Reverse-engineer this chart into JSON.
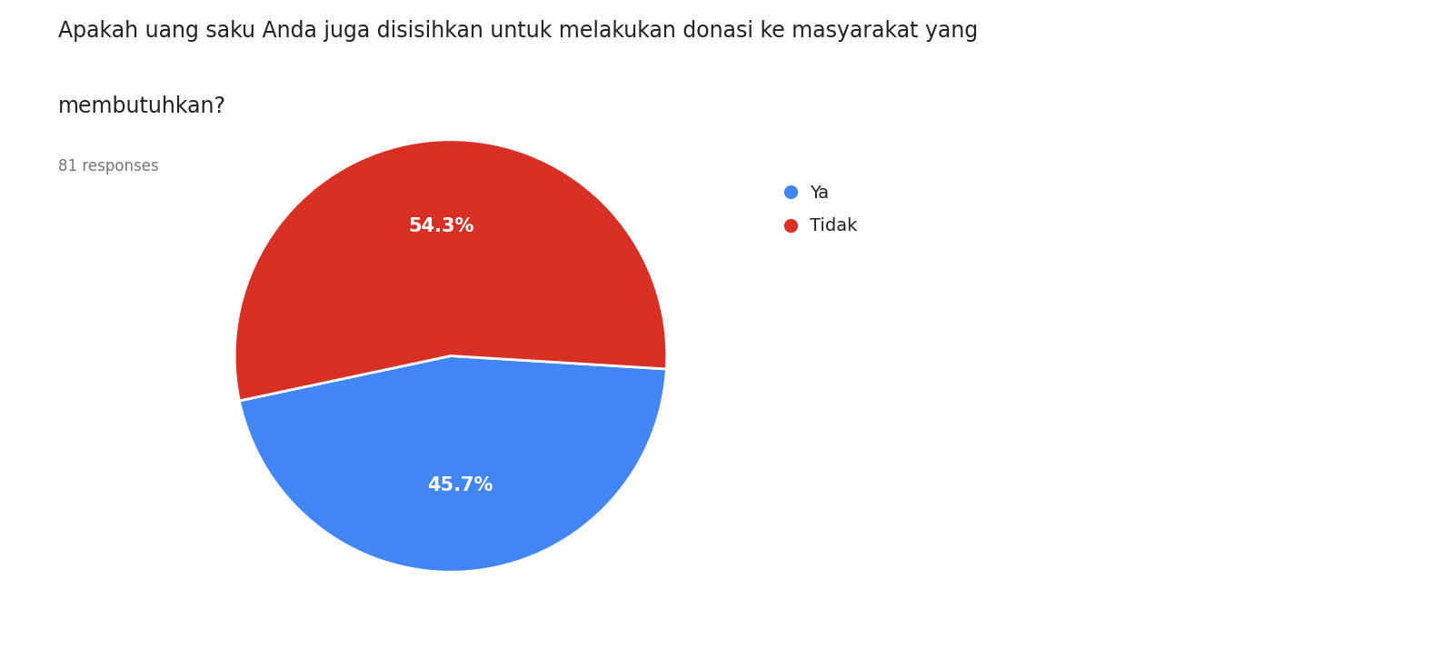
{
  "title_line1": "Apakah uang saku Anda juga disisihkan untuk melakukan donasi ke masyarakat yang",
  "title_line2": "membutuhkan?",
  "responses_label": "81 responses",
  "labels": [
    "Ya",
    "Tidak"
  ],
  "values": [
    45.7,
    54.3
  ],
  "colors": [
    "#4285F4",
    "#D93025"
  ],
  "background_color": "#ffffff",
  "title_fontsize": 17,
  "responses_fontsize": 12,
  "legend_fontsize": 14,
  "autopct_fontsize": 15,
  "startangle": 192
}
